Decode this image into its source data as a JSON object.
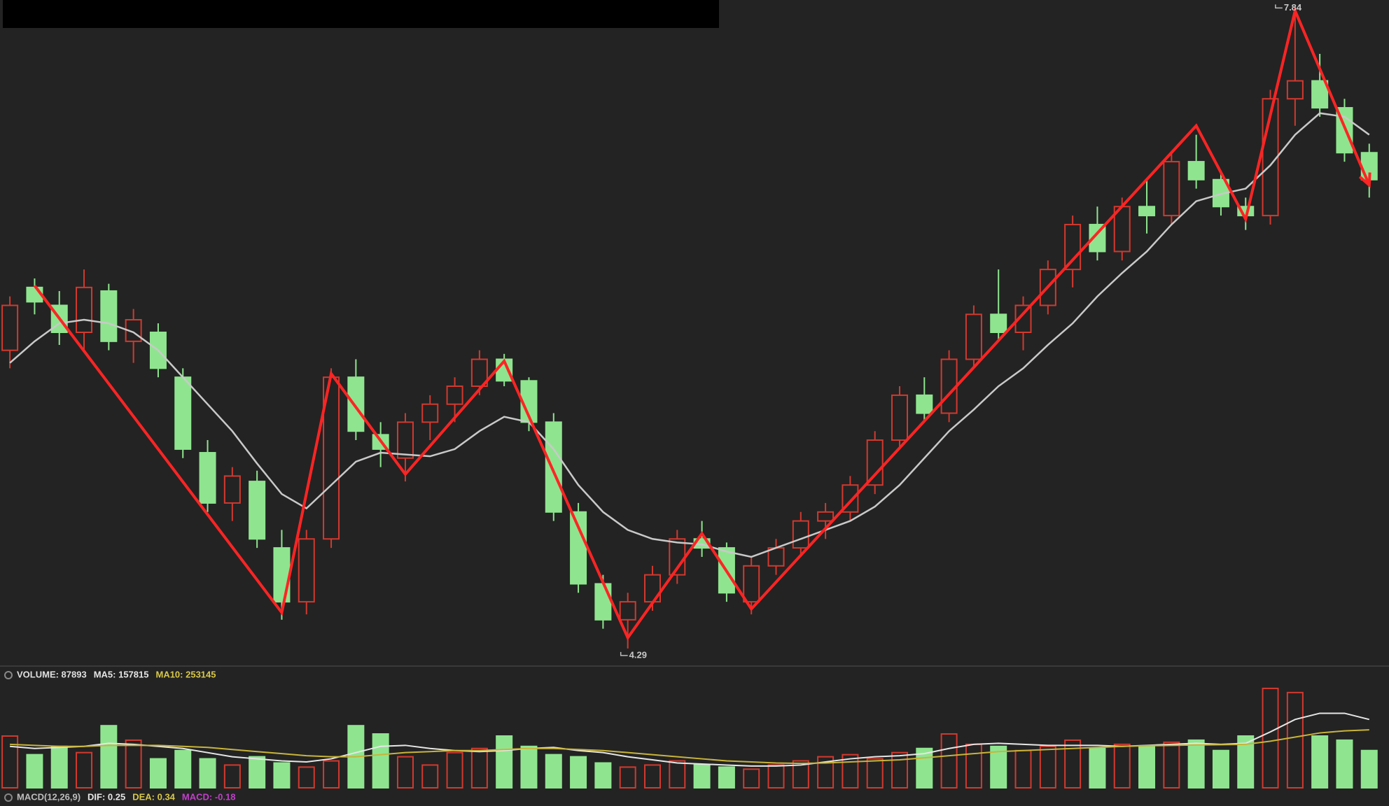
{
  "chart_data": {
    "type": "candlestick",
    "xlim": [
      -0.4,
      55.8
    ],
    "ylim": [
      4.2,
      7.9
    ],
    "up_color": "#d2392f",
    "down_color": "#8fe58f",
    "open": [
      5.95,
      6.3,
      6.2,
      6.05,
      6.28,
      6.0,
      6.05,
      5.8,
      5.38,
      5.1,
      5.22,
      4.85,
      4.55,
      4.9,
      5.8,
      5.48,
      5.35,
      5.55,
      5.65,
      5.75,
      5.9,
      5.78,
      5.55,
      5.05,
      4.65,
      4.45,
      4.55,
      4.7,
      4.9,
      4.85,
      4.55,
      4.75,
      4.85,
      5.0,
      5.05,
      5.2,
      5.45,
      5.7,
      5.6,
      5.9,
      6.15,
      6.05,
      6.2,
      6.4,
      6.65,
      6.5,
      6.75,
      6.7,
      7.0,
      6.9,
      6.75,
      6.7,
      7.35,
      7.45,
      7.3,
      7.05
    ],
    "high": [
      6.25,
      6.35,
      6.28,
      6.4,
      6.32,
      6.18,
      6.1,
      5.85,
      5.45,
      5.3,
      5.28,
      4.95,
      4.95,
      5.85,
      5.9,
      5.55,
      5.6,
      5.7,
      5.8,
      5.95,
      5.93,
      5.8,
      5.6,
      5.1,
      4.7,
      4.6,
      4.75,
      4.95,
      5.0,
      4.88,
      4.8,
      4.9,
      5.05,
      5.1,
      5.25,
      5.5,
      5.75,
      5.8,
      5.95,
      6.2,
      6.4,
      6.25,
      6.45,
      6.7,
      6.75,
      6.8,
      6.9,
      7.05,
      7.15,
      6.95,
      6.8,
      7.4,
      7.84,
      7.6,
      7.35,
      7.1
    ],
    "low": [
      5.85,
      6.15,
      5.98,
      5.95,
      5.95,
      5.88,
      5.8,
      5.35,
      5.05,
      5.0,
      4.85,
      4.45,
      4.48,
      4.85,
      5.45,
      5.3,
      5.22,
      5.45,
      5.55,
      5.7,
      5.75,
      5.5,
      5.0,
      4.6,
      4.4,
      4.29,
      4.5,
      4.65,
      4.8,
      4.55,
      4.48,
      4.7,
      4.8,
      4.9,
      5.0,
      5.15,
      5.4,
      5.55,
      5.55,
      5.85,
      6.0,
      5.95,
      6.15,
      6.3,
      6.45,
      6.45,
      6.6,
      6.65,
      6.85,
      6.7,
      6.62,
      6.65,
      7.2,
      7.25,
      7.0,
      6.8
    ],
    "close": [
      6.2,
      6.22,
      6.05,
      6.3,
      6.0,
      6.12,
      5.85,
      5.4,
      5.1,
      5.25,
      4.9,
      4.55,
      4.9,
      5.8,
      5.5,
      5.4,
      5.55,
      5.65,
      5.75,
      5.9,
      5.78,
      5.55,
      5.05,
      4.65,
      4.45,
      4.55,
      4.7,
      4.9,
      4.85,
      4.6,
      4.75,
      4.85,
      5.0,
      5.05,
      5.2,
      5.45,
      5.7,
      5.6,
      5.9,
      6.15,
      6.05,
      6.2,
      6.4,
      6.65,
      6.5,
      6.75,
      6.7,
      7.0,
      6.9,
      6.75,
      6.7,
      7.35,
      7.45,
      7.3,
      7.05,
      6.9
    ],
    "ma": {
      "color": "#c9c9c9",
      "values": [
        5.88,
        6.0,
        6.1,
        6.12,
        6.1,
        6.05,
        5.95,
        5.8,
        5.65,
        5.5,
        5.32,
        5.15,
        5.07,
        5.2,
        5.33,
        5.38,
        5.37,
        5.36,
        5.4,
        5.5,
        5.58,
        5.55,
        5.4,
        5.2,
        5.05,
        4.95,
        4.9,
        4.88,
        4.87,
        4.83,
        4.8,
        4.85,
        4.9,
        4.95,
        5.0,
        5.08,
        5.2,
        5.35,
        5.5,
        5.62,
        5.75,
        5.85,
        5.98,
        6.1,
        6.25,
        6.38,
        6.5,
        6.65,
        6.78,
        6.82,
        6.85,
        6.98,
        7.15,
        7.27,
        7.25,
        7.15
      ]
    },
    "zigzag": {
      "color": "#ff2424",
      "x": [
        1,
        11,
        13,
        16,
        20,
        25,
        28,
        30,
        48,
        50,
        52,
        55
      ],
      "values": [
        6.31,
        4.49,
        5.82,
        5.26,
        5.89,
        4.35,
        4.93,
        4.51,
        7.2,
        6.68,
        7.84,
        6.87
      ]
    },
    "high_label": 7.84,
    "low_label": 4.29,
    "volume": {
      "ylim": [
        0,
        500000
      ],
      "values": [
        250000,
        160000,
        200000,
        170000,
        300000,
        230000,
        140000,
        180000,
        140000,
        110000,
        150000,
        120000,
        100000,
        130000,
        300000,
        260000,
        150000,
        110000,
        170000,
        190000,
        250000,
        200000,
        160000,
        150000,
        120000,
        100000,
        110000,
        130000,
        110000,
        100000,
        90000,
        110000,
        130000,
        150000,
        160000,
        140000,
        170000,
        190000,
        260000,
        210000,
        200000,
        180000,
        200000,
        230000,
        190000,
        210000,
        200000,
        220000,
        230000,
        180000,
        250000,
        480000,
        460000,
        250000,
        230000,
        180000
      ],
      "ma5": {
        "color": "#e6e6e6",
        "values": [
          200000,
          190000,
          195000,
          200000,
          215000,
          210000,
          200000,
          190000,
          170000,
          150000,
          140000,
          130000,
          125000,
          140000,
          170000,
          200000,
          205000,
          190000,
          180000,
          175000,
          180000,
          190000,
          195000,
          180000,
          170000,
          150000,
          135000,
          120000,
          115000,
          110000,
          105000,
          105000,
          110000,
          125000,
          140000,
          150000,
          155000,
          165000,
          190000,
          210000,
          215000,
          210000,
          205000,
          205000,
          205000,
          200000,
          205000,
          210000,
          215000,
          210000,
          215000,
          270000,
          330000,
          360000,
          360000,
          330000
        ]
      },
      "ma10": {
        "color": "#c8b43a",
        "values": [
          210000,
          205000,
          200000,
          200000,
          205000,
          205000,
          205000,
          200000,
          195000,
          185000,
          175000,
          165000,
          155000,
          150000,
          150000,
          160000,
          170000,
          175000,
          180000,
          180000,
          185000,
          190000,
          190000,
          185000,
          180000,
          170000,
          160000,
          150000,
          140000,
          130000,
          125000,
          120000,
          118000,
          120000,
          125000,
          130000,
          135000,
          145000,
          155000,
          165000,
          175000,
          180000,
          185000,
          190000,
          195000,
          200000,
          203000,
          205000,
          207000,
          208000,
          210000,
          225000,
          245000,
          265000,
          275000,
          280000
        ]
      },
      "legend": [
        {
          "text": "VOLUME: 87893",
          "color": "#e0e0e0"
        },
        {
          "text": "MA5: 157815",
          "color": "#e6e6e6"
        },
        {
          "text": "MA10: 253145",
          "color": "#d8c84a"
        }
      ]
    },
    "macd": {
      "legend": [
        {
          "text": "MACD(12,26,9)",
          "color": "#bdbdbd"
        },
        {
          "text": "DIF: 0.25",
          "color": "#e6e6e6"
        },
        {
          "text": "DEA: 0.34",
          "color": "#d8c84a"
        },
        {
          "text": "MACD: -0.18",
          "color": "#c040c8"
        }
      ]
    }
  }
}
